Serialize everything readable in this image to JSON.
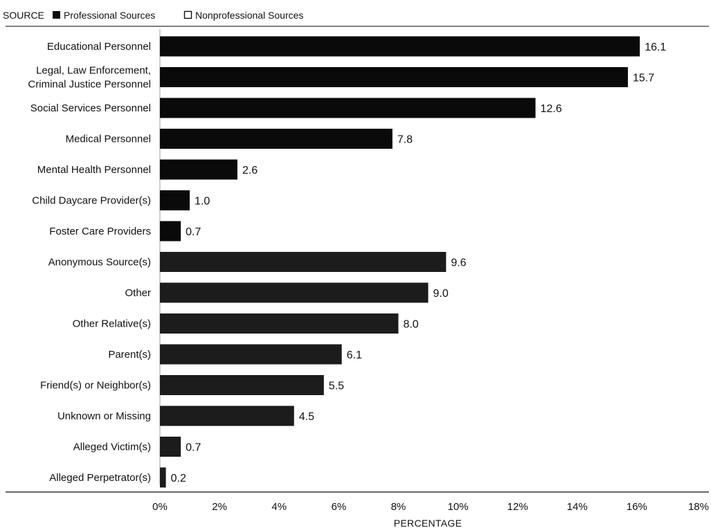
{
  "legend": {
    "title": "SOURCE",
    "items": [
      {
        "label": "Professional Sources",
        "swatch": "filled"
      },
      {
        "label": "Nonprofessional Sources",
        "swatch": "outline"
      }
    ]
  },
  "colors": {
    "professional": "#0a0a0a",
    "nonprofessional": "#1c1c1c",
    "axis": "#333333",
    "text": "#111111"
  },
  "chart_data": {
    "type": "bar",
    "orientation": "horizontal",
    "xlabel": "PERCENTAGE",
    "xlim": [
      0,
      18
    ],
    "xticks": [
      0,
      2,
      4,
      6,
      8,
      10,
      12,
      14,
      16,
      18
    ],
    "xtick_labels": [
      "0%",
      "2%",
      "4%",
      "6%",
      "8%",
      "10%",
      "12%",
      "14%",
      "16%",
      "18%"
    ],
    "grid": false,
    "legend_position": "top-left",
    "categories": [
      [
        "Educational Personnel"
      ],
      [
        "Legal, Law Enforcement,",
        "Criminal Justice Personnel"
      ],
      [
        "Social Services Personnel"
      ],
      [
        "Medical Personnel"
      ],
      [
        "Mental Health Personnel"
      ],
      [
        "Child Daycare Provider(s)"
      ],
      [
        "Foster Care Providers"
      ],
      [
        "Anonymous Source(s)"
      ],
      [
        "Other"
      ],
      [
        "Other Relative(s)"
      ],
      [
        "Parent(s)"
      ],
      [
        "Friend(s) or Neighbor(s)"
      ],
      [
        "Unknown or Missing"
      ],
      [
        "Alleged Victim(s)"
      ],
      [
        "Alleged Perpetrator(s)"
      ]
    ],
    "values": [
      16.1,
      15.7,
      12.6,
      7.8,
      2.6,
      1.0,
      0.7,
      9.6,
      9.0,
      8.0,
      6.1,
      5.5,
      4.5,
      0.7,
      0.2
    ],
    "value_labels": [
      "16.1",
      "15.7",
      "12.6",
      "7.8",
      "2.6",
      "1.0",
      "0.7",
      "9.6",
      "9.0",
      "8.0",
      "6.1",
      "5.5",
      "4.5",
      "0.7",
      "0.2"
    ],
    "group": [
      "professional",
      "professional",
      "professional",
      "professional",
      "professional",
      "professional",
      "professional",
      "nonprofessional",
      "nonprofessional",
      "nonprofessional",
      "nonprofessional",
      "nonprofessional",
      "nonprofessional",
      "nonprofessional",
      "nonprofessional"
    ]
  }
}
